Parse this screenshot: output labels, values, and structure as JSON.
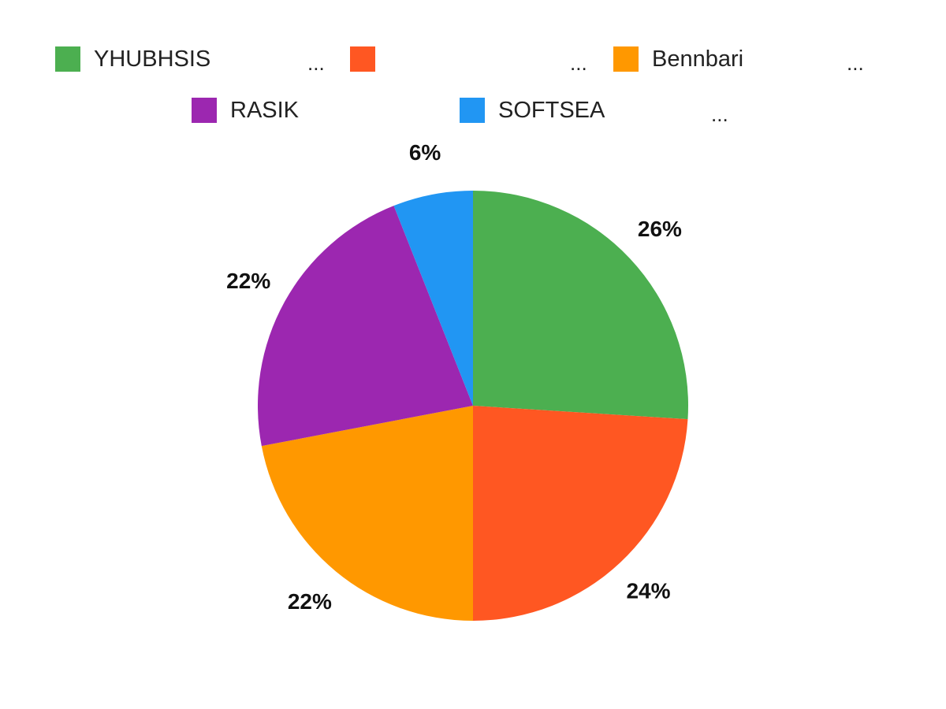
{
  "chart_data": {
    "type": "pie",
    "slices": [
      {
        "name": "YHUBHSIS",
        "value": 26,
        "label": "26%",
        "color": "#4CAF50"
      },
      {
        "name": "",
        "value": 24,
        "label": "24%",
        "color": "#FF5722"
      },
      {
        "name": "Bennbari",
        "value": 22,
        "label": "22%",
        "color": "#FF9800"
      },
      {
        "name": "RASIK",
        "value": 22,
        "label": "22%",
        "color": "#9C27B0"
      },
      {
        "name": "SOFTSEA",
        "value": 6,
        "label": "6%",
        "color": "#2196F3"
      }
    ],
    "legend": {
      "placement": "top",
      "ellipsis": "..."
    }
  }
}
